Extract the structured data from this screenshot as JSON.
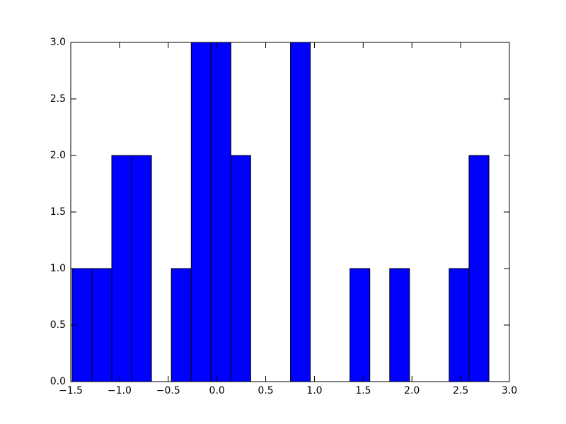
{
  "chart_data": {
    "type": "histogram",
    "bins": [
      -1.486,
      -1.282,
      -1.079,
      -0.875,
      -0.672,
      -0.468,
      -0.264,
      -0.061,
      0.143,
      0.346,
      0.55,
      0.754,
      0.957,
      1.161,
      1.364,
      1.568,
      1.772,
      1.975,
      2.179,
      2.382,
      2.586,
      2.79
    ],
    "values": [
      1,
      1,
      2,
      2,
      0,
      1,
      3,
      3,
      2,
      0,
      0,
      3,
      0,
      0,
      1,
      0,
      1,
      0,
      0,
      1,
      2
    ],
    "color": "#0000ff",
    "xlim": [
      -1.5,
      3.0
    ],
    "ylim": [
      0,
      3.0
    ],
    "xticks": [
      {
        "value": -1.5,
        "label": "−1.5"
      },
      {
        "value": -1.0,
        "label": "−1.0"
      },
      {
        "value": -0.5,
        "label": "−0.5"
      },
      {
        "value": 0,
        "label": "0.0"
      },
      0.5,
      {
        "value": 1.0,
        "label": "1.0"
      },
      1.5,
      {
        "value": 2.0,
        "label": "2.0"
      },
      2.5,
      {
        "value": 3.0,
        "label": "3.0"
      }
    ],
    "yticks": [
      {
        "value": 0,
        "label": "0.0"
      },
      0.5,
      {
        "value": 1.0,
        "label": "1.0"
      },
      1.5,
      {
        "value": 2.0,
        "label": "2.0"
      },
      2.5,
      {
        "value": 3.0,
        "label": "3.0"
      }
    ],
    "grid": false
  }
}
